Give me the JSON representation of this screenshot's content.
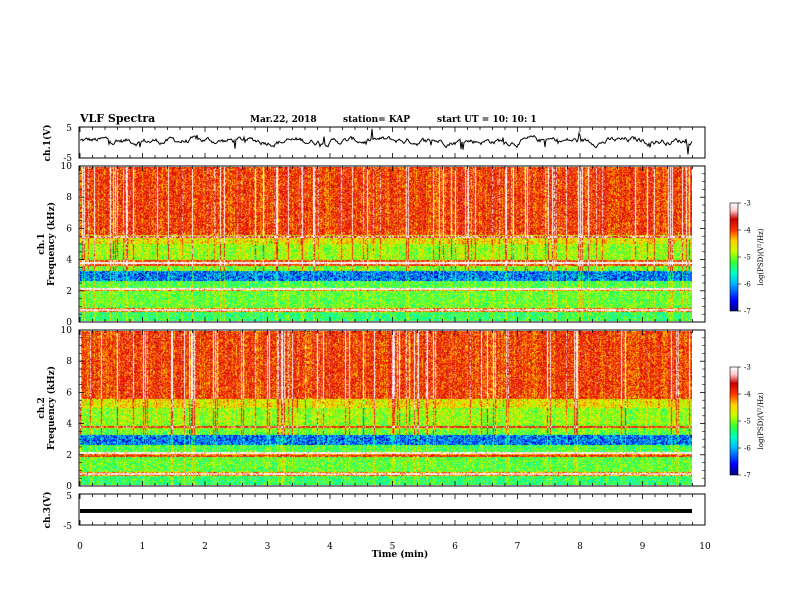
{
  "header": {
    "title": "VLF Spectra",
    "date": "Mar.22, 2018",
    "station": "station= KAP",
    "start_ut": "start  UT  =   10: 10: 1"
  },
  "colors": {
    "colormap": [
      "#00007f",
      "#0000ff",
      "#00b4ff",
      "#00ffc8",
      "#33ff33",
      "#c8ff00",
      "#ffd200",
      "#ff3300",
      "#c80000",
      "#ffc8c8",
      "#ffffff"
    ]
  },
  "chart_data": [
    {
      "type": "line",
      "name": "ch1-waveform",
      "ylabel": "ch.1(V)",
      "ylim": [
        -5,
        5
      ],
      "yticks": [
        "5",
        "-5"
      ],
      "xlim": [
        0,
        10
      ],
      "description_values": {
        "mean_v": 0.2,
        "amplitude_v": 3.0
      }
    },
    {
      "type": "heatmap",
      "name": "ch1-spectrogram",
      "ylabel": "ch.1\nFrequency  (kHz)",
      "ylim": [
        0,
        10
      ],
      "yticks": [
        "0",
        "2",
        "4",
        "6",
        "8",
        "10"
      ],
      "colorbar": {
        "label": "log(PSD)(V²/Hz)",
        "range": [
          -7,
          -3
        ],
        "ticks": [
          "-3",
          "-4",
          "-5",
          "-6",
          "-7"
        ]
      }
    },
    {
      "type": "heatmap",
      "name": "ch2-spectrogram",
      "ylabel": "ch.2\nFrequency  (kHz)",
      "ylim": [
        0,
        10
      ],
      "yticks": [
        "0",
        "2",
        "4",
        "6",
        "8",
        "10"
      ],
      "colorbar": {
        "label": "log(PSD)(V²/Hz)",
        "range": [
          -7,
          -3
        ],
        "ticks": [
          "-3",
          "-4",
          "-5",
          "-6",
          "-7"
        ]
      }
    },
    {
      "type": "line",
      "name": "ch3-waveform",
      "ylabel": "ch.3(V)",
      "ylim": [
        -5,
        5
      ],
      "yticks": [
        "5",
        "-5"
      ],
      "xlim": [
        0,
        10
      ],
      "values_summary": {
        "constant_v": 0.0
      }
    }
  ],
  "xaxis": {
    "label": "Time  (min)",
    "ticks": [
      "0",
      "1",
      "2",
      "3",
      "4",
      "5",
      "6",
      "7",
      "8",
      "9",
      "10"
    ]
  }
}
